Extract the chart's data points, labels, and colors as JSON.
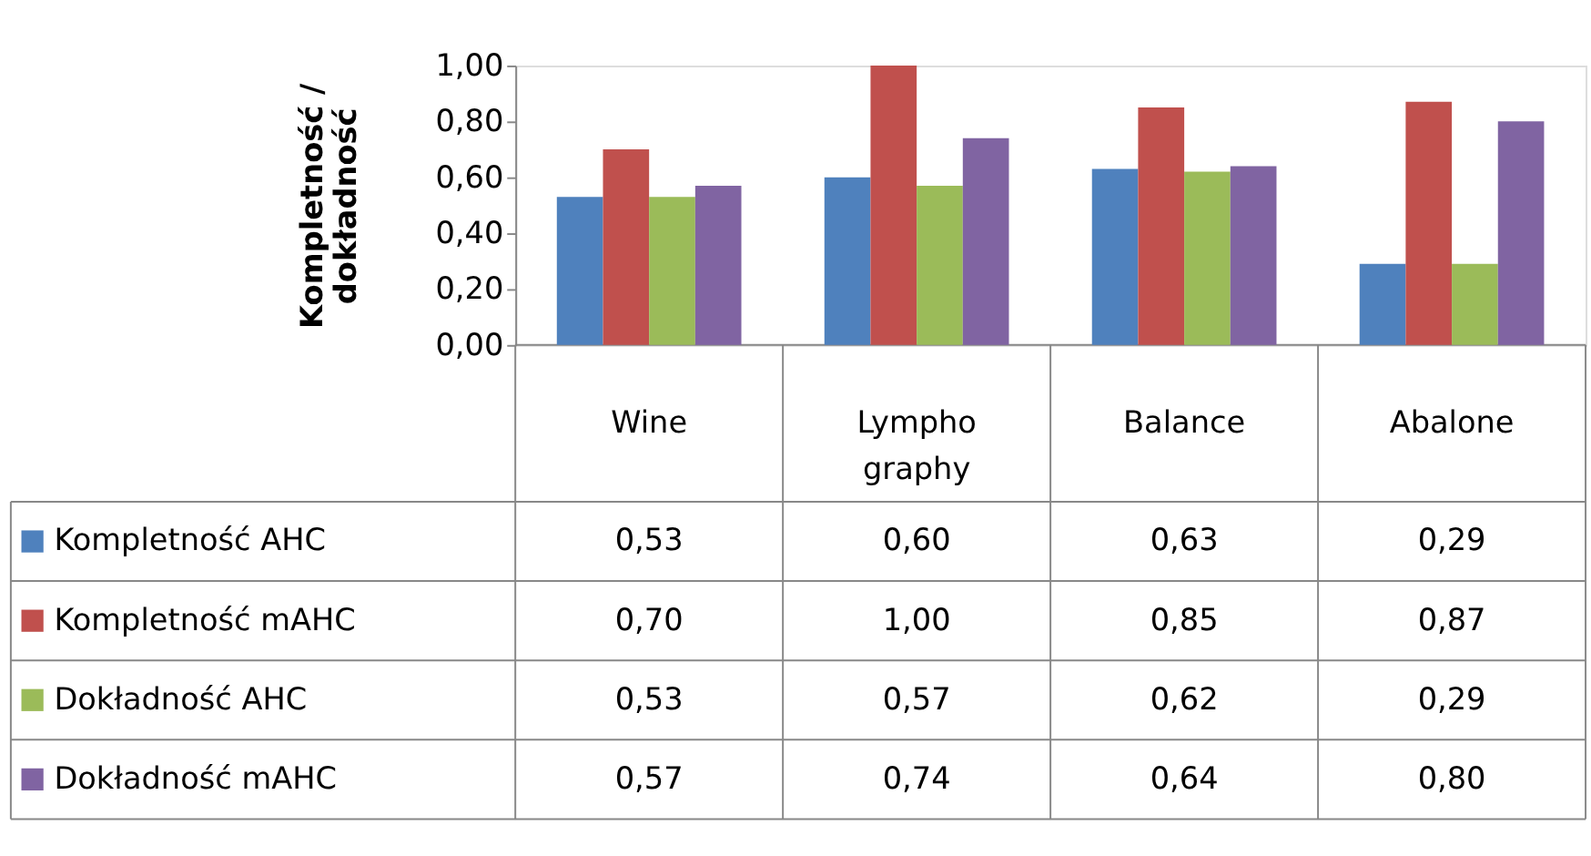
{
  "chart_data": {
    "type": "bar",
    "ylabel": "Kompletność / dokładność",
    "categories": [
      "Wine",
      "Lympho graphy",
      "Balance",
      "Abalone"
    ],
    "series": [
      {
        "name": "Kompletność AHC",
        "color": "#4f81bd",
        "values": [
          0.53,
          0.6,
          0.63,
          0.29
        ],
        "value_labels": [
          "0,53",
          "0,60",
          "0,63",
          "0,29"
        ]
      },
      {
        "name": "Kompletność mAHC",
        "color": "#c0504d",
        "values": [
          0.7,
          1.0,
          0.85,
          0.87
        ],
        "value_labels": [
          "0,70",
          "1,00",
          "0,85",
          "0,87"
        ]
      },
      {
        "name": "Dokładność AHC",
        "color": "#9bbb59",
        "values": [
          0.53,
          0.57,
          0.62,
          0.29
        ],
        "value_labels": [
          "0,53",
          "0,57",
          "0,62",
          "0,29"
        ]
      },
      {
        "name": "Dokładność mAHC",
        "color": "#8064a2",
        "values": [
          0.57,
          0.74,
          0.64,
          0.8
        ],
        "value_labels": [
          "0,57",
          "0,74",
          "0,64",
          "0,80"
        ]
      }
    ],
    "ylim": [
      0,
      1
    ],
    "yticks": [
      {
        "value": 0,
        "label": "0,00"
      },
      {
        "value": 0.2,
        "label": "0,20"
      },
      {
        "value": 0.4,
        "label": "0,40"
      },
      {
        "value": 0.6,
        "label": "0,60"
      },
      {
        "value": 0.8,
        "label": "0,80"
      },
      {
        "value": 1,
        "label": "1,00"
      }
    ],
    "legend": "bottom",
    "grid": false
  }
}
